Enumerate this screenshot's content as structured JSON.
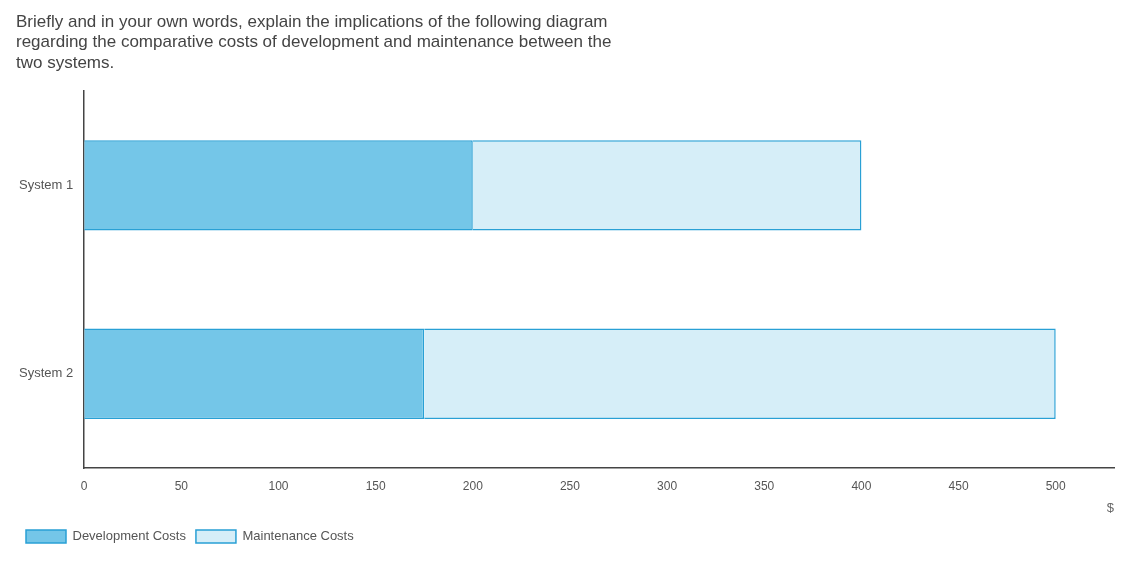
{
  "chart_data": {
    "type": "bar",
    "orientation": "horizontal",
    "stacked": true,
    "title": [
      "Briefly and in your own words, explain the implications of the following diagram",
      "regarding the comparative costs of development and maintenance between the",
      "two systems."
    ],
    "xlabel": "$",
    "categories": [
      "System 1",
      "System 2"
    ],
    "series": [
      {
        "name": "Development Costs",
        "color": "#74C6E8",
        "values": [
          200,
          175
        ]
      },
      {
        "name": "Maintenance Costs",
        "color": "#D6EEF8",
        "values": [
          200,
          325
        ]
      }
    ],
    "xlim": [
      0,
      530
    ],
    "xticks": [
      0,
      50,
      100,
      150,
      200,
      250,
      300,
      350,
      400,
      450,
      500
    ],
    "grid": false,
    "legend": "bottom"
  }
}
